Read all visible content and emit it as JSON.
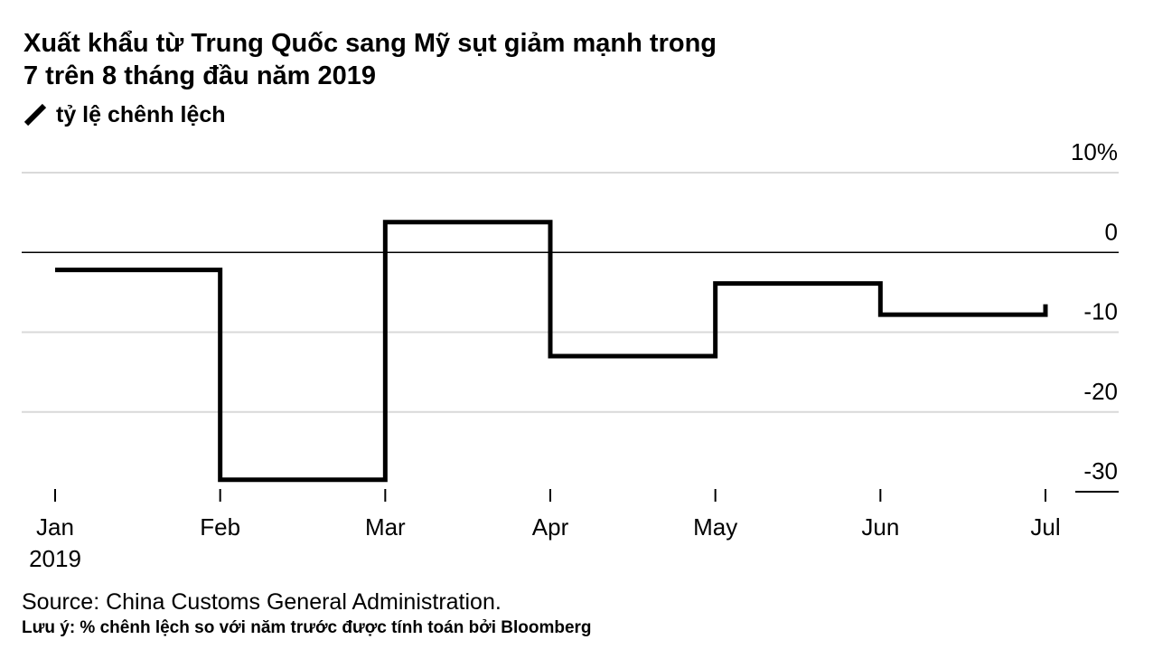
{
  "title_line1": "Xuất khẩu từ Trung Quốc sang Mỹ sụt giảm mạnh trong",
  "title_line2": "7 trên 8 tháng đầu năm 2019",
  "legend_label": "tỷ lệ chênh lệch",
  "source": "Source: China Customs General Administration.",
  "note": "Lưu ý: % chênh lệch so với năm trước được tính toán bởi Bloomberg",
  "colors": {
    "line": "#000000",
    "grid": "#d9d9d9",
    "zero": "#000000"
  },
  "chart_data": {
    "type": "line",
    "step": true,
    "title": "Xuất khẩu từ Trung Quốc sang Mỹ sụt giảm mạnh trong 7 trên 8 tháng đầu năm 2019",
    "series": [
      {
        "name": "tỷ lệ chênh lệch",
        "x": [
          "Jan 2019",
          "Feb",
          "Mar",
          "Apr",
          "May",
          "Jun",
          "Jul"
        ],
        "values": [
          -2.2,
          -28.5,
          3.8,
          -13.0,
          -3.9,
          -7.8,
          -6.5
        ]
      }
    ],
    "x_ticks": [
      {
        "label": "Jan",
        "sublabel": "2019"
      },
      {
        "label": "Feb"
      },
      {
        "label": "Mar"
      },
      {
        "label": "Apr"
      },
      {
        "label": "May"
      },
      {
        "label": "Jun"
      },
      {
        "label": "Jul"
      }
    ],
    "y_ticks": [
      10,
      0,
      -10,
      -20,
      -30
    ],
    "y_tick_labels": [
      "10%",
      "0",
      "-10",
      "-20",
      "-30"
    ],
    "ylim": [
      -30,
      10
    ],
    "xlabel": "",
    "ylabel": "",
    "grid": true,
    "legend": "top-left"
  }
}
